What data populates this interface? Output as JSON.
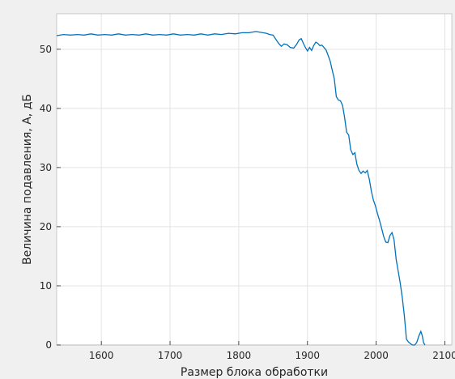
{
  "chart_data": {
    "type": "line",
    "title": "",
    "xlabel": "Размер блока обработки",
    "ylabel": "Величина подавления, A, дБ",
    "xlim": [
      1535,
      2110
    ],
    "ylim": [
      0,
      56
    ],
    "xticks": [
      1600,
      1700,
      1800,
      1900,
      2000,
      2100
    ],
    "yticks": [
      0,
      10,
      20,
      30,
      40,
      50
    ],
    "grid": true,
    "colors": {
      "line": "#0072bd",
      "axes_bg": "#ffffff",
      "figure_bg": "#f0f0f0",
      "grid": "#e3e3e3"
    },
    "series": [
      {
        "x": [
          1535,
          1545,
          1555,
          1565,
          1575,
          1585,
          1595,
          1605,
          1615,
          1625,
          1635,
          1645,
          1655,
          1665,
          1675,
          1685,
          1695,
          1705,
          1715,
          1725,
          1735,
          1745,
          1755,
          1765,
          1775,
          1785,
          1795,
          1805,
          1815,
          1825,
          1830,
          1835,
          1840,
          1845,
          1850,
          1855,
          1858,
          1862,
          1866,
          1870,
          1875,
          1880,
          1884,
          1888,
          1891,
          1894,
          1897,
          1900,
          1903,
          1906,
          1909,
          1912,
          1915,
          1918,
          1921,
          1924,
          1927,
          1930,
          1933,
          1936,
          1939,
          1942,
          1945,
          1948,
          1951,
          1954,
          1957,
          1960,
          1963,
          1966,
          1969,
          1972,
          1975,
          1978,
          1981,
          1984,
          1987,
          1990,
          1993,
          1996,
          1999,
          2002,
          2005,
          2008,
          2011,
          2014,
          2017,
          2020,
          2023,
          2026,
          2029,
          2032,
          2035,
          2038,
          2041,
          2044,
          2047,
          2050,
          2053,
          2056,
          2059,
          2062,
          2065,
          2067,
          2069,
          2071
        ],
        "y": [
          52.3,
          52.5,
          52.4,
          52.5,
          52.4,
          52.6,
          52.4,
          52.5,
          52.4,
          52.6,
          52.4,
          52.5,
          52.4,
          52.6,
          52.4,
          52.5,
          52.4,
          52.6,
          52.4,
          52.5,
          52.4,
          52.6,
          52.4,
          52.6,
          52.5,
          52.7,
          52.6,
          52.8,
          52.8,
          53.0,
          52.9,
          52.8,
          52.7,
          52.5,
          52.4,
          51.5,
          51.0,
          50.5,
          50.9,
          50.8,
          50.3,
          50.2,
          50.8,
          51.6,
          51.8,
          51.0,
          50.3,
          49.7,
          50.3,
          49.8,
          50.6,
          51.2,
          51.0,
          50.6,
          50.7,
          50.3,
          49.9,
          49.0,
          48.0,
          46.5,
          45.0,
          42.0,
          41.4,
          41.3,
          40.5,
          38.5,
          36.0,
          35.5,
          33.0,
          32.2,
          32.5,
          30.5,
          29.5,
          29.0,
          29.4,
          29.1,
          29.5,
          28.0,
          26.0,
          24.5,
          23.5,
          22.2,
          21.0,
          19.7,
          18.3,
          17.4,
          17.3,
          18.5,
          19.0,
          17.8,
          14.5,
          12.5,
          10.5,
          8.0,
          5.0,
          1.0,
          0.5,
          0.2,
          0,
          0,
          0.4,
          1.5,
          2.3,
          1.6,
          0.4,
          0
        ]
      }
    ]
  }
}
